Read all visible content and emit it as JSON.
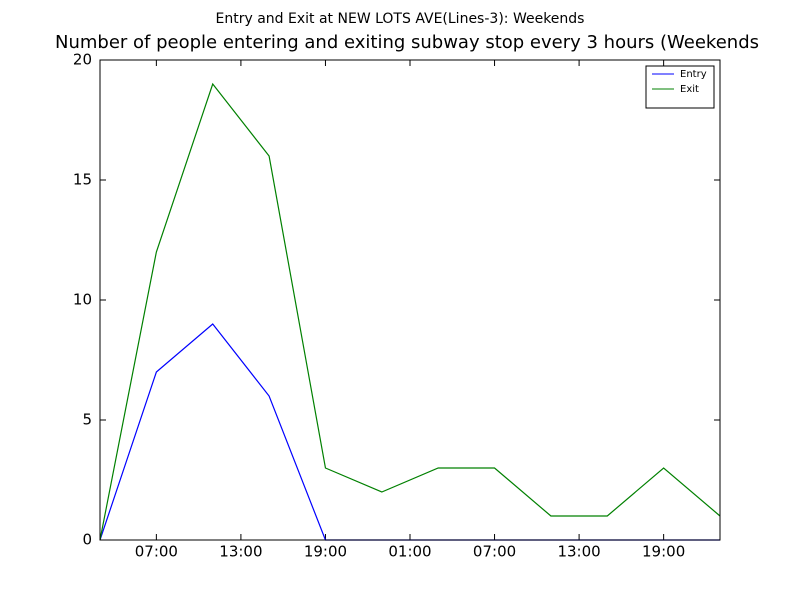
{
  "chart_data": {
    "type": "line",
    "suptitle": "Entry and Exit at NEW LOTS AVE(Lines-3): Weekends",
    "title": "Number of people entering and exiting subway stop every 3 hours (Weekends",
    "x": [
      0,
      4,
      8,
      12,
      16,
      20,
      24,
      28,
      32,
      36,
      40,
      44
    ],
    "xlim": [
      0,
      44
    ],
    "xticks": [
      {
        "value": 4,
        "label": "07:00"
      },
      {
        "value": 10,
        "label": "13:00"
      },
      {
        "value": 16,
        "label": "19:00"
      },
      {
        "value": 22,
        "label": "01:00"
      },
      {
        "value": 28,
        "label": "07:00"
      },
      {
        "value": 34,
        "label": "13:00"
      },
      {
        "value": 40,
        "label": "19:00"
      }
    ],
    "ylim": [
      0,
      20
    ],
    "yticks": [
      0,
      5,
      10,
      15,
      20
    ],
    "legend": "upper right",
    "series": [
      {
        "name": "Entry",
        "color": "#0000ff",
        "values": [
          0,
          7,
          9,
          6,
          0,
          0,
          0,
          0,
          0,
          0,
          0,
          0
        ]
      },
      {
        "name": "Exit",
        "color": "#008000",
        "values": [
          0,
          12,
          19,
          16,
          3,
          2,
          3,
          3,
          1,
          1,
          3,
          1
        ]
      }
    ]
  }
}
